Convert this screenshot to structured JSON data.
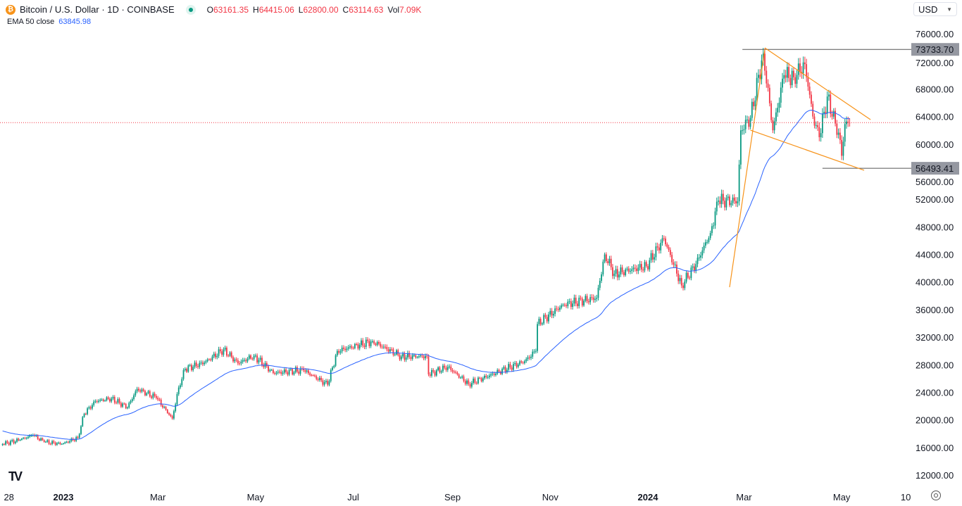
{
  "header": {
    "symbol_title": "Bitcoin / U.S. Dollar · 1D · COINBASE",
    "open_label": "O",
    "open": "63161.35",
    "high_label": "H",
    "high": "64415.06",
    "low_label": "L",
    "low": "62800.00",
    "close_label": "C",
    "close": "63114.63",
    "vol_label": "Vol",
    "vol": "7.09K",
    "ema_label": "EMA 50 close",
    "ema_value": "63845.98"
  },
  "currency": "USD",
  "colors": {
    "up": "#089981",
    "down": "#f23645",
    "ema": "#2962ff",
    "trend": "#f7931a",
    "level": "#787b86"
  },
  "chart_data": {
    "type": "candlestick",
    "title": "Bitcoin / U.S. Dollar · 1D · COINBASE",
    "ylim": [
      12000,
      76000
    ],
    "y_ticks": [
      "76000.00",
      "72000.00",
      "68000.00",
      "64000.00",
      "60000.00",
      "56000.00",
      "52000.00",
      "48000.00",
      "44000.00",
      "40000.00",
      "36000.00",
      "32000.00",
      "28000.00",
      "24000.00",
      "20000.00",
      "16000.00",
      "12000.00"
    ],
    "x_ticks": [
      {
        "date": "2022-11-28",
        "label": "28",
        "bold": false
      },
      {
        "date": "2023-01-01",
        "label": "2023",
        "bold": true
      },
      {
        "date": "2023-03-01",
        "label": "Mar",
        "bold": false
      },
      {
        "date": "2023-05-01",
        "label": "May",
        "bold": false
      },
      {
        "date": "2023-07-01",
        "label": "Jul",
        "bold": false
      },
      {
        "date": "2023-09-01",
        "label": "Sep",
        "bold": false
      },
      {
        "date": "2023-11-01",
        "label": "Nov",
        "bold": false
      },
      {
        "date": "2024-01-01",
        "label": "2024",
        "bold": true
      },
      {
        "date": "2024-03-01",
        "label": "Mar",
        "bold": false
      },
      {
        "date": "2024-05-01",
        "label": "May",
        "bold": false
      },
      {
        "date": "2024-06-10",
        "label": "10",
        "bold": false
      }
    ],
    "close_path": [
      [
        "2022-11-24",
        16500
      ],
      [
        "2022-12-05",
        17100
      ],
      [
        "2022-12-13",
        17800
      ],
      [
        "2022-12-20",
        16800
      ],
      [
        "2022-12-31",
        16500
      ],
      [
        "2023-01-10",
        17400
      ],
      [
        "2023-01-14",
        20900
      ],
      [
        "2023-01-21",
        22700
      ],
      [
        "2023-01-31",
        23100
      ],
      [
        "2023-02-10",
        21800
      ],
      [
        "2023-02-16",
        24500
      ],
      [
        "2023-02-28",
        23200
      ],
      [
        "2023-03-10",
        20200
      ],
      [
        "2023-03-14",
        24700
      ],
      [
        "2023-03-18",
        27400
      ],
      [
        "2023-03-30",
        28300
      ],
      [
        "2023-04-11",
        30200
      ],
      [
        "2023-04-20",
        28200
      ],
      [
        "2023-04-30",
        29300
      ],
      [
        "2023-05-12",
        26800
      ],
      [
        "2023-05-31",
        27200
      ],
      [
        "2023-06-15",
        25100
      ],
      [
        "2023-06-21",
        30000
      ],
      [
        "2023-07-13",
        31400
      ],
      [
        "2023-07-31",
        29200
      ],
      [
        "2023-08-16",
        29200
      ],
      [
        "2023-08-17",
        26600
      ],
      [
        "2023-08-29",
        27700
      ],
      [
        "2023-09-11",
        25200
      ],
      [
        "2023-09-30",
        27000
      ],
      [
        "2023-10-16",
        28500
      ],
      [
        "2023-10-23",
        30000
      ],
      [
        "2023-10-24",
        33900
      ],
      [
        "2023-11-09",
        36700
      ],
      [
        "2023-11-30",
        37700
      ],
      [
        "2023-12-05",
        44000
      ],
      [
        "2023-12-11",
        41200
      ],
      [
        "2023-12-31",
        42300
      ],
      [
        "2024-01-11",
        46300
      ],
      [
        "2024-01-22",
        39500
      ],
      [
        "2024-01-31",
        42600
      ],
      [
        "2024-02-09",
        47100
      ],
      [
        "2024-02-14",
        51800
      ],
      [
        "2024-02-26",
        51700
      ],
      [
        "2024-02-28",
        62000
      ],
      [
        "2024-03-05",
        63800
      ],
      [
        "2024-03-13",
        73100
      ],
      [
        "2024-03-19",
        62000
      ],
      [
        "2024-03-26",
        70000
      ],
      [
        "2024-04-01",
        69700
      ],
      [
        "2024-04-08",
        71600
      ],
      [
        "2024-04-13",
        64000
      ],
      [
        "2024-04-17",
        61000
      ],
      [
        "2024-04-22",
        66900
      ],
      [
        "2024-04-30",
        60600
      ],
      [
        "2024-05-01",
        58300
      ],
      [
        "2024-05-03",
        62900
      ],
      [
        "2024-05-06",
        63114.63
      ]
    ],
    "ema_period": 50,
    "last_price": 63114.63,
    "levels": [
      {
        "price": 73733.7,
        "label": "73733.70",
        "from": "2024-02-29"
      },
      {
        "price": 56493.41,
        "label": "56493.41",
        "from": "2024-04-19"
      }
    ],
    "trendlines": [
      {
        "name": "upper-wedge-line",
        "p1": [
          "2024-03-14",
          73960
        ],
        "p2": [
          "2024-05-19",
          63550
        ]
      },
      {
        "name": "lower-wedge-line",
        "p1": [
          "2024-03-05",
          62020
        ],
        "p2": [
          "2024-05-15",
          56200
        ]
      },
      {
        "name": "rally-trend-line",
        "p1": [
          "2024-02-21",
          39250
        ],
        "p2": [
          "2024-03-14",
          73760
        ]
      }
    ]
  }
}
